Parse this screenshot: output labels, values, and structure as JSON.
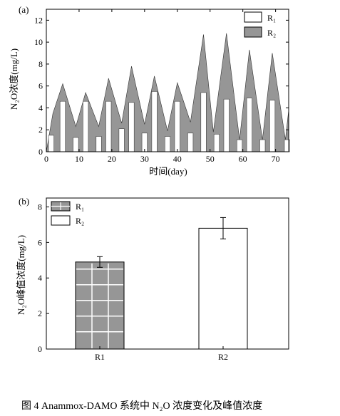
{
  "caption": "图 4    Anammox-DAMO 系统中 N₂O 浓度变化及峰值浓度",
  "chart_data": [
    {
      "panel": "(a)",
      "type": "bar",
      "subtype": "bar with shaded area",
      "xlabel": "时间(day)",
      "ylabel": "N₂O浓度(mg/L)",
      "xlim": [
        0,
        74
      ],
      "ylim": [
        0,
        13
      ],
      "xticks": [
        "0",
        "10",
        "20",
        "30",
        "40",
        "50",
        "60",
        "70"
      ],
      "yticks": [
        "0",
        "2",
        "4",
        "6",
        "8",
        "10",
        "12"
      ],
      "legend_position": "top-right",
      "series": [
        {
          "name": "R₁",
          "style": "white bars",
          "x": [
            1.5,
            5,
            9,
            12,
            16,
            19,
            23,
            26,
            30,
            33,
            37,
            40,
            44,
            48,
            52,
            55,
            59,
            62,
            66,
            69,
            73.5
          ],
          "values": [
            1.5,
            4.6,
            1.3,
            4.6,
            1.4,
            4.6,
            2.1,
            4.5,
            1.7,
            5.5,
            1.4,
            4.6,
            1.7,
            5.4,
            1.6,
            4.8,
            1.1,
            4.9,
            1.1,
            4.7,
            1.1
          ]
        },
        {
          "name": "R₂",
          "style": "grey shaded area",
          "x": [
            0,
            2,
            5,
            9,
            12,
            16,
            19,
            23,
            26,
            30,
            33,
            37,
            40,
            44,
            48,
            51,
            55,
            59,
            62,
            66,
            69,
            73,
            74
          ],
          "values": [
            0,
            3.5,
            6.2,
            2.3,
            5.4,
            2.3,
            6.7,
            2.6,
            7.8,
            2.5,
            6.9,
            1.9,
            6.3,
            2.7,
            10.7,
            1.8,
            10.8,
            1.1,
            9.3,
            1.1,
            9.0,
            1.1,
            3.8
          ]
        }
      ],
      "colors": {
        "R1": "#ffffff",
        "R2": "#969696"
      }
    },
    {
      "panel": "(b)",
      "type": "bar",
      "categories": [
        "R1",
        "R2"
      ],
      "values": [
        4.9,
        6.8
      ],
      "errors": [
        0.3,
        0.6
      ],
      "ylabel": "N₂O峰值浓度(mg/L)",
      "ylim": [
        0,
        8.5
      ],
      "yticks": [
        "0",
        "2",
        "4",
        "6",
        "8"
      ],
      "legend": [
        "R₁",
        "R₂"
      ],
      "legend_position": "top-left",
      "colors": {
        "R1": "#969696",
        "R2": "#ffffff"
      }
    }
  ]
}
